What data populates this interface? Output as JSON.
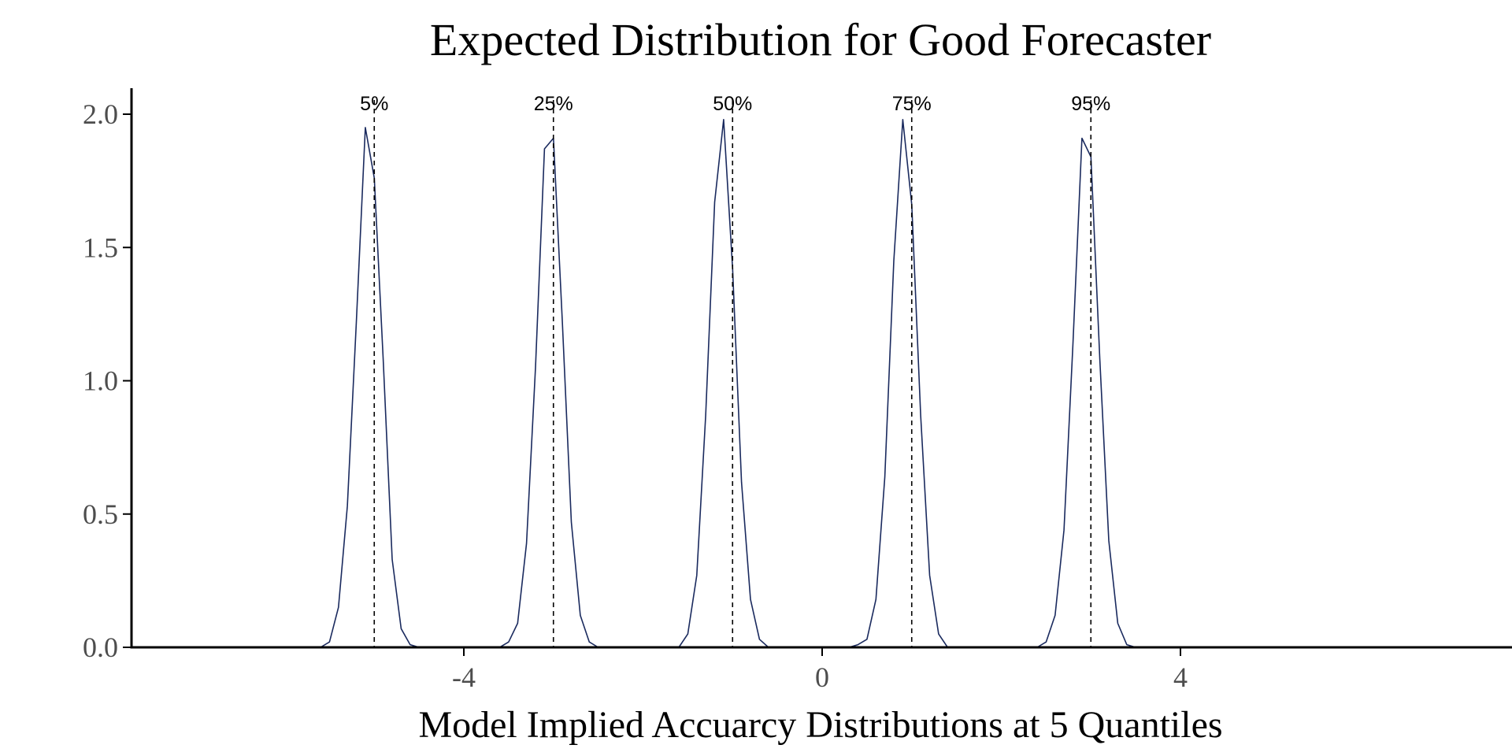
{
  "chart_data": {
    "type": "line",
    "title": "Expected Distribution for Good Forecaster",
    "xlabel": "Model Implied Accuarcy Distributions at 5 Quantiles",
    "ylabel": "",
    "xlim": [
      -7.8,
      7.6
    ],
    "ylim": [
      0,
      2.05
    ],
    "x_ticks": [
      {
        "value": -4,
        "label": "-4"
      },
      {
        "value": 0,
        "label": "0"
      },
      {
        "value": 4,
        "label": "4"
      }
    ],
    "y_ticks": [
      {
        "value": 0,
        "label": "0.0"
      },
      {
        "value": 0.5,
        "label": "0.5"
      },
      {
        "value": 1.0,
        "label": "1.0"
      },
      {
        "value": 1.5,
        "label": "1.5"
      },
      {
        "value": 2.0,
        "label": "2.0"
      }
    ],
    "grid": false,
    "line_color": "#1a2a5e",
    "series": [
      {
        "quantile_label": "5%",
        "marker_x": -5,
        "x": [
          -5.6,
          -5.5,
          -5.4,
          -5.3,
          -5.2,
          -5.1,
          -5.0,
          -4.9,
          -4.8,
          -4.7,
          -4.6,
          -4.5,
          -4.4
        ],
        "y": [
          0.0,
          0.02,
          0.15,
          0.53,
          1.22,
          1.95,
          1.76,
          1.08,
          0.33,
          0.07,
          0.01,
          0.0,
          0.0
        ]
      },
      {
        "quantile_label": "25%",
        "marker_x": -3,
        "x": [
          -3.6,
          -3.5,
          -3.4,
          -3.3,
          -3.2,
          -3.1,
          -3.0,
          -2.9,
          -2.8,
          -2.7,
          -2.6,
          -2.5,
          -2.4
        ],
        "y": [
          0.0,
          0.02,
          0.09,
          0.39,
          1.05,
          1.87,
          1.91,
          1.22,
          0.47,
          0.12,
          0.02,
          0.0,
          0.0
        ]
      },
      {
        "quantile_label": "50%",
        "marker_x": -1,
        "x": [
          -1.6,
          -1.5,
          -1.4,
          -1.3,
          -1.2,
          -1.1,
          -1.0,
          -0.9,
          -0.8,
          -0.7,
          -0.6,
          -0.5
        ],
        "y": [
          0.0,
          0.05,
          0.27,
          0.87,
          1.67,
          1.98,
          1.42,
          0.62,
          0.18,
          0.03,
          0.0,
          0.0
        ]
      },
      {
        "quantile_label": "75%",
        "marker_x": 1,
        "x": [
          0.3,
          0.4,
          0.5,
          0.6,
          0.7,
          0.8,
          0.9,
          1.0,
          1.1,
          1.2,
          1.3,
          1.4,
          1.5,
          1.6
        ],
        "y": [
          0.0,
          0.01,
          0.03,
          0.18,
          0.64,
          1.45,
          1.98,
          1.66,
          0.87,
          0.27,
          0.05,
          0.0,
          0.0,
          0.0
        ]
      },
      {
        "quantile_label": "95%",
        "marker_x": 3,
        "x": [
          2.3,
          2.4,
          2.5,
          2.6,
          2.7,
          2.8,
          2.9,
          3.0,
          3.1,
          3.2,
          3.3,
          3.4,
          3.5,
          3.6,
          3.7
        ],
        "y": [
          0.0,
          0.0,
          0.02,
          0.12,
          0.44,
          1.14,
          1.91,
          1.84,
          1.08,
          0.4,
          0.09,
          0.01,
          0.0,
          0.0,
          0.0
        ]
      }
    ]
  }
}
